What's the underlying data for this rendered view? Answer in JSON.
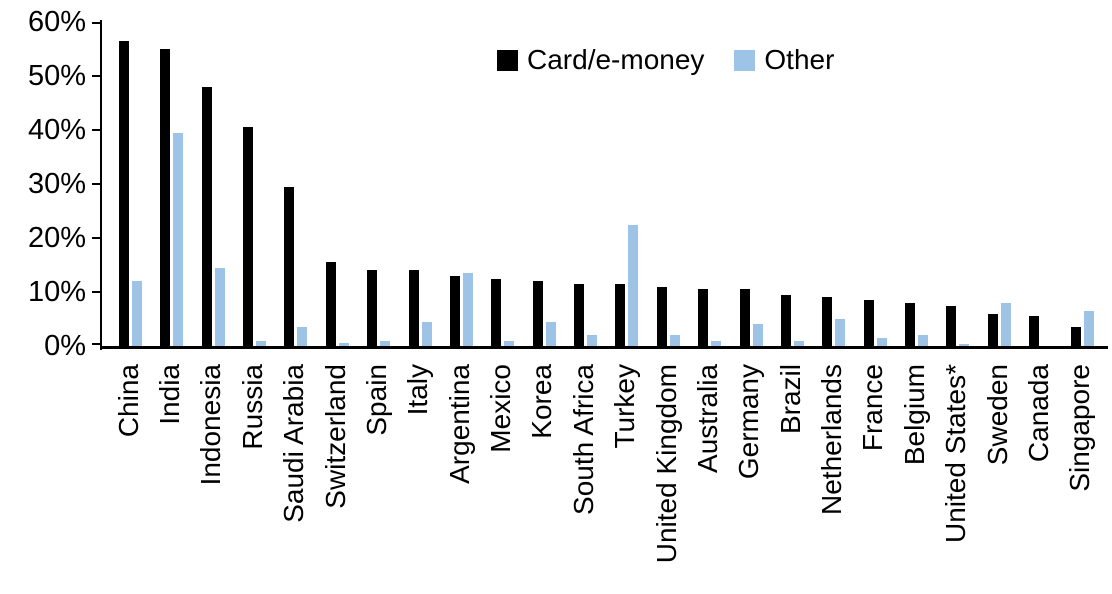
{
  "chart_data": {
    "type": "bar",
    "title": "",
    "categories": [
      "China",
      "India",
      "Indonesia",
      "Russia",
      "Saudi Arabia",
      "Switzerland",
      "Spain",
      "Italy",
      "Argentina",
      "Mexico",
      "Korea",
      "South Africa",
      "Turkey",
      "United Kingdom",
      "Australia",
      "Germany",
      "Brazil",
      "Netherlands",
      "France",
      "Belgium",
      "United States*",
      "Sweden",
      "Canada",
      "Singapore"
    ],
    "series": [
      {
        "name": "Card/e-money",
        "color": "#000000",
        "values": [
          56.5,
          55,
          48,
          40.5,
          29.5,
          15.5,
          14,
          14,
          13,
          12.5,
          12,
          11.5,
          11.5,
          11,
          10.5,
          10.5,
          9.5,
          9,
          8.5,
          8,
          7.5,
          6,
          5.5,
          3.5
        ]
      },
      {
        "name": "Other",
        "color": "#9DC3E6",
        "values": [
          12,
          39.5,
          14.5,
          1,
          3.5,
          0.5,
          1,
          4.5,
          13.5,
          1,
          4.5,
          2,
          22.5,
          2,
          1,
          4,
          1,
          5,
          1.5,
          2,
          0.3,
          8,
          0,
          6.5
        ]
      }
    ],
    "xlabel": "",
    "ylabel": "",
    "ylim": [
      0,
      60
    ],
    "y_tick_step": 10,
    "y_tick_labels": [
      "0%",
      "10%",
      "20%",
      "30%",
      "40%",
      "50%",
      "60%"
    ],
    "y_tick_format": "percent",
    "x_label_rotation_degrees": 90,
    "grid": false,
    "legend_position": "top-center",
    "axis_color": "#000000",
    "background_color": "#FFFFFF"
  }
}
